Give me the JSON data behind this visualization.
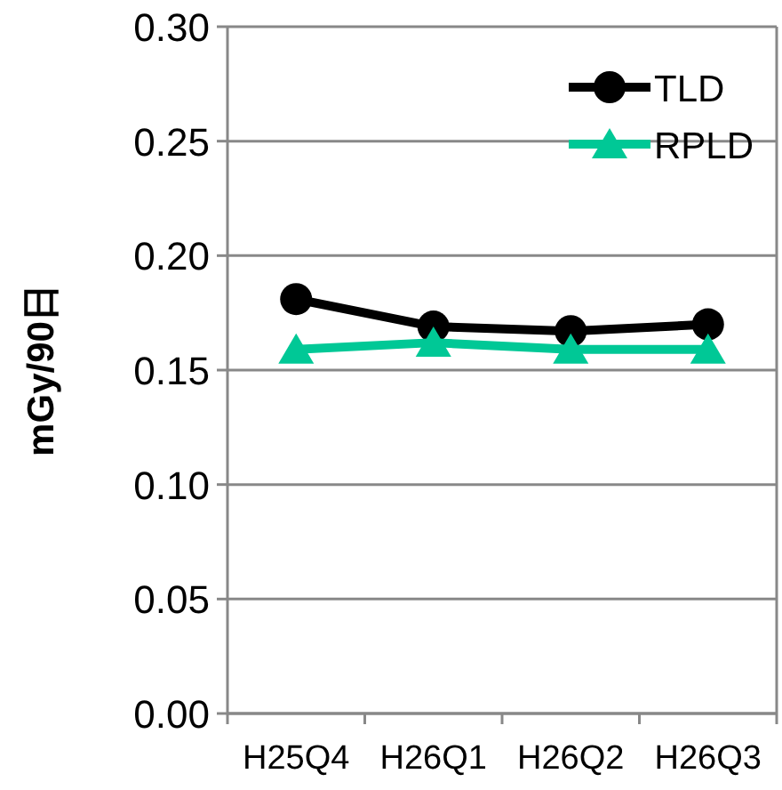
{
  "chart_data": {
    "type": "line",
    "ylabel": "mGy/90日",
    "categories": [
      "H25Q4",
      "H26Q1",
      "H26Q2",
      "H26Q3"
    ],
    "series": [
      {
        "name": "TLD",
        "color": "#000000",
        "marker": "circle",
        "values": [
          0.181,
          0.169,
          0.167,
          0.17
        ]
      },
      {
        "name": "RPLD",
        "color": "#00c896",
        "marker": "triangle",
        "values": [
          0.159,
          0.162,
          0.159,
          0.159
        ]
      }
    ],
    "ylim": [
      0,
      0.3
    ],
    "yticks": [
      {
        "value": 0,
        "label": "0.00"
      },
      {
        "value": 0.05,
        "label": "0.05"
      },
      {
        "value": 0.1,
        "label": "0.10"
      },
      {
        "value": 0.15,
        "label": "0.15"
      },
      {
        "value": 0.2,
        "label": "0.20"
      },
      {
        "value": 0.25,
        "label": "0.25"
      },
      {
        "value": 0.3,
        "label": "0.30"
      }
    ],
    "grid": "y",
    "legend": "top right"
  }
}
